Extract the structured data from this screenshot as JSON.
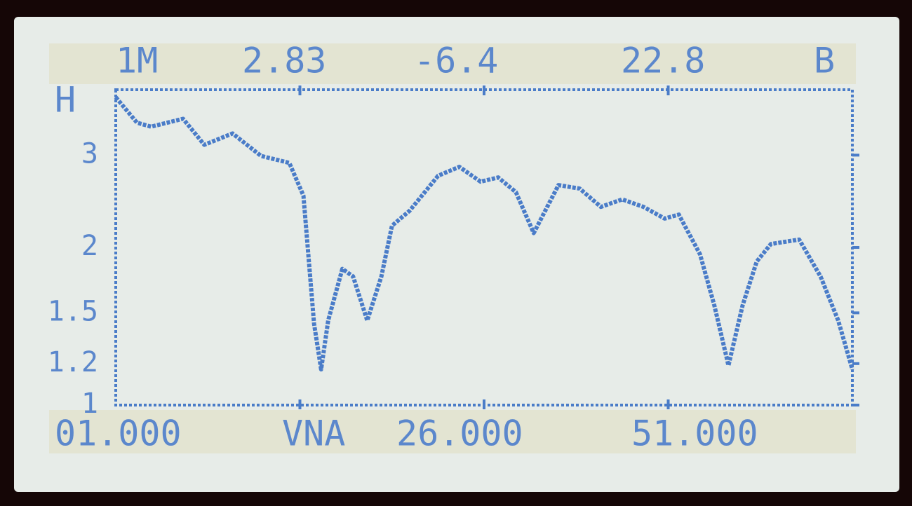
{
  "header": {
    "items": [
      "1M",
      "2.83",
      "-6.4",
      "22.8",
      "B"
    ]
  },
  "footer": {
    "items": [
      "01.000",
      "VNA",
      "26.000",
      "51.000"
    ]
  },
  "chart_data": {
    "type": "line",
    "x": [
      1,
      2.44,
      3.4,
      5.57,
      7.01,
      8.93,
      10.86,
      12.78,
      13.74,
      14.46,
      14.94,
      15.42,
      16.38,
      17.11,
      18.07,
      19.03,
      19.75,
      20.95,
      22.88,
      24.32,
      25.76,
      26.96,
      28.16,
      29.37,
      31.05,
      32.49,
      33.93,
      35.38,
      36.82,
      38.26,
      39.22,
      40.66,
      41.63,
      42.59,
      43.55,
      44.51,
      45.47,
      47.39,
      48.84,
      50.04,
      51
    ],
    "series": [
      {
        "color": "#4a7cc8",
        "values": [
          3.87,
          3.46,
          3.4,
          3.52,
          3.14,
          3.3,
          2.99,
          2.9,
          2.51,
          1.43,
          1.17,
          1.45,
          1.82,
          1.76,
          1.45,
          1.76,
          2.2,
          2.35,
          2.74,
          2.85,
          2.67,
          2.72,
          2.55,
          2.13,
          2.63,
          2.59,
          2.39,
          2.47,
          2.39,
          2.27,
          2.31,
          1.94,
          1.55,
          1.19,
          1.55,
          1.88,
          2.03,
          2.07,
          1.76,
          1.45,
          1.17
        ]
      }
    ],
    "xlim": [
      1,
      51
    ],
    "xticks": [
      13.5,
      26,
      38.5
    ],
    "ylim": [
      1,
      4
    ],
    "yticks": [
      1,
      1.2,
      1.5,
      2,
      3
    ],
    "top_label": "H",
    "log_y": true
  }
}
